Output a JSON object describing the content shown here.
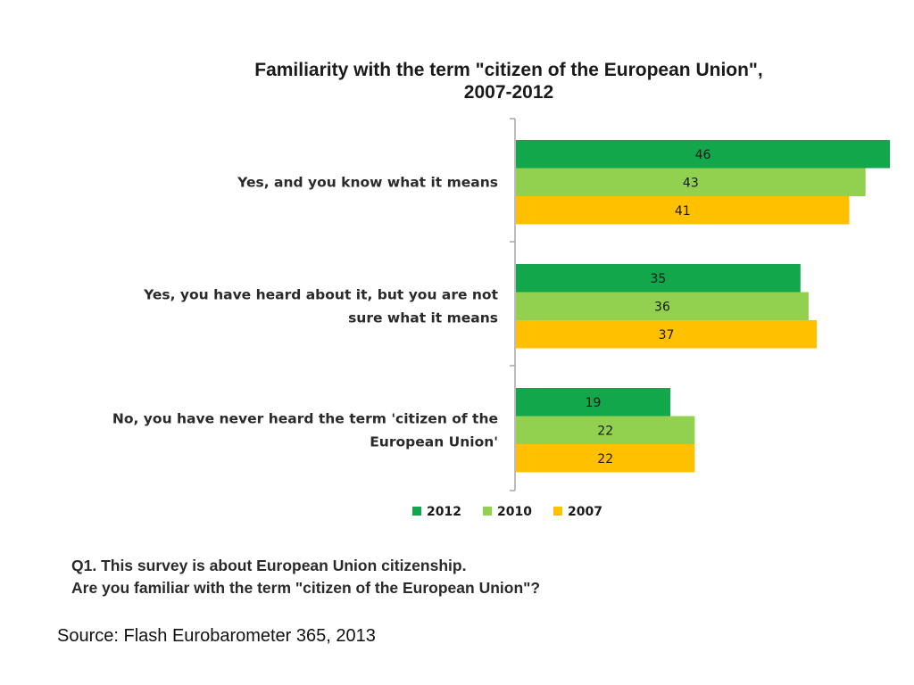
{
  "chart_data": {
    "type": "bar",
    "orientation": "horizontal",
    "title_lines": [
      "Familiarity with the term \"citizen of the European Union\",",
      "2007-2012"
    ],
    "categories": [
      [
        "Yes, and you know what it means"
      ],
      [
        "Yes, you have heard about it, but you are not",
        "sure what it means"
      ],
      [
        "No, you have never heard the term 'citizen of the",
        "European Union'"
      ]
    ],
    "series": [
      {
        "name": "2012",
        "color": "#12a74b",
        "values": [
          46,
          35,
          19
        ]
      },
      {
        "name": "2010",
        "color": "#92d050",
        "values": [
          43,
          36,
          22
        ]
      },
      {
        "name": "2007",
        "color": "#ffc000",
        "values": [
          41,
          37,
          22
        ]
      }
    ],
    "xlim": [
      0,
      46
    ],
    "legend_position": "bottom",
    "grid": false
  },
  "question": {
    "line1": "Q1. This survey is about European Union citizenship.",
    "line2": "Are you familiar with the term \"citizen of the European Union\"?"
  },
  "source": "Source: Flash Eurobarometer 365, 2013"
}
